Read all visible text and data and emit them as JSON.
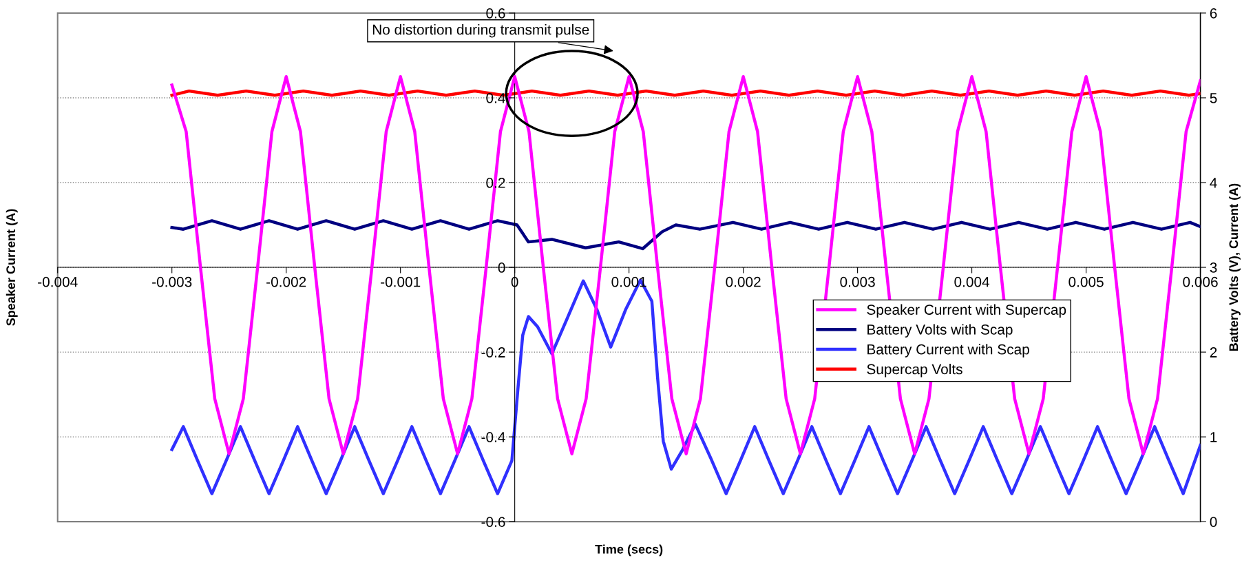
{
  "chart_data": {
    "type": "line",
    "xlabel": "Time (secs)",
    "ylabel": "Speaker Current (A)",
    "y2label": "Battery Volts (V), Current (A)",
    "xlim": [
      -0.004,
      0.006
    ],
    "xticks": [
      -0.004,
      -0.003,
      -0.002,
      -0.001,
      0,
      0.001,
      0.002,
      0.003,
      0.004,
      0.005,
      0.006
    ],
    "ylim": [
      -0.6,
      0.6
    ],
    "yticks": [
      -0.6,
      -0.4,
      -0.2,
      0,
      0.2,
      0.4,
      0.6
    ],
    "y2lim": [
      0,
      6
    ],
    "y2ticks": [
      0,
      1,
      2,
      3,
      4,
      5,
      6
    ],
    "grid": "y",
    "legend": "bottom right",
    "marker": "none",
    "line_style": "solid",
    "annotations": [
      "No distortion during transmit pulse"
    ],
    "series": [
      {
        "name": "Speaker Current with Supercap",
        "color": "#ff00ff",
        "x": [
          -0.003,
          -0.002875,
          -0.00275,
          -0.002625,
          -0.0025,
          -0.002375,
          -0.00225,
          -0.002125,
          -0.002,
          -0.001875,
          -0.00175,
          -0.001625,
          -0.0015,
          -0.001375,
          -0.00125,
          -0.001125,
          -0.001,
          -0.000875,
          -0.00075,
          -0.000625,
          -0.0005,
          -0.000375,
          -0.00025,
          -0.000125,
          0,
          0.000125,
          0.00025,
          0.000375,
          0.0005,
          0.000625,
          0.00075,
          0.000875,
          0.001,
          0.001125,
          0.00125,
          0.001375,
          0.0015,
          0.001625,
          0.00175,
          0.001875,
          0.002,
          0.002125,
          0.00225,
          0.002375,
          0.0025,
          0.002625,
          0.00275,
          0.002875,
          0.003,
          0.003125,
          0.00325,
          0.003375,
          0.0035,
          0.003625,
          0.00375,
          0.003875,
          0.004,
          0.004125,
          0.00425,
          0.004375,
          0.0045,
          0.004625,
          0.00475,
          0.004875,
          0.005,
          0.005125,
          0.00525,
          0.005375,
          0.0055,
          0.005625,
          0.00575,
          0.005875,
          0.006
        ],
        "values": [
          0.43,
          0.32,
          0.0,
          -0.31,
          -0.44,
          -0.31,
          0.0,
          0.32,
          0.45,
          0.32,
          0.0,
          -0.31,
          -0.44,
          -0.31,
          0.0,
          0.32,
          0.45,
          0.32,
          0.0,
          -0.31,
          -0.44,
          -0.31,
          0.0,
          0.32,
          0.45,
          0.32,
          0.0,
          -0.31,
          -0.44,
          -0.31,
          0.0,
          0.32,
          0.45,
          0.32,
          0.0,
          -0.31,
          -0.44,
          -0.31,
          0.0,
          0.32,
          0.45,
          0.32,
          0.0,
          -0.31,
          -0.44,
          -0.31,
          0.0,
          0.32,
          0.45,
          0.32,
          0.0,
          -0.31,
          -0.44,
          -0.31,
          0.0,
          0.32,
          0.45,
          0.32,
          0.0,
          -0.31,
          -0.44,
          -0.31,
          0.0,
          0.32,
          0.45,
          0.32,
          0.0,
          -0.31,
          -0.44,
          -0.31,
          0.0,
          0.32,
          0.44
        ]
      },
      {
        "name": "Battery Volts with Scap",
        "color": "#000080",
        "axis": "y2",
        "x": [
          -0.003,
          -0.0029,
          -0.00265,
          -0.0024,
          -0.00215,
          -0.0019,
          -0.00165,
          -0.0014,
          -0.00115,
          -0.0009,
          -0.00065,
          -0.0004,
          -0.00015,
          2e-05,
          0.00012,
          0.000325,
          0.00062,
          0.00091,
          0.00112,
          0.00129,
          0.00141,
          0.00162,
          0.00191,
          0.00216,
          0.00241,
          0.00266,
          0.00291,
          0.00316,
          0.00341,
          0.00366,
          0.00391,
          0.00416,
          0.00441,
          0.00466,
          0.00491,
          0.00516,
          0.00541,
          0.00566,
          0.00591,
          0.006
        ],
        "values": [
          3.47,
          3.45,
          3.55,
          3.45,
          3.55,
          3.45,
          3.55,
          3.45,
          3.55,
          3.45,
          3.55,
          3.45,
          3.55,
          3.5,
          3.3,
          3.33,
          3.23,
          3.3,
          3.22,
          3.42,
          3.5,
          3.45,
          3.53,
          3.45,
          3.53,
          3.45,
          3.53,
          3.45,
          3.53,
          3.45,
          3.53,
          3.45,
          3.53,
          3.45,
          3.53,
          3.45,
          3.53,
          3.45,
          3.53,
          3.48
        ]
      },
      {
        "name": "Battery Current with Scap",
        "color": "#3030ff",
        "axis": "y2",
        "x": [
          -0.003,
          -0.0029,
          -0.002775,
          -0.00265,
          -0.002525,
          -0.0024,
          -0.002275,
          -0.00215,
          -0.002025,
          -0.0019,
          -0.001775,
          -0.00165,
          -0.001525,
          -0.0014,
          -0.001275,
          -0.00115,
          -0.001025,
          -0.0009,
          -0.000775,
          -0.00065,
          -0.000525,
          -0.0004,
          -0.000275,
          -0.00015,
          -2.5e-05,
          3e-05,
          7e-05,
          0.00012,
          0.0002,
          0.000325,
          0.00046,
          0.0006,
          0.00072,
          0.00084,
          0.00097,
          0.0011,
          0.0012,
          0.00125,
          0.0013,
          0.00137,
          0.00147,
          0.00158,
          0.001715,
          0.00185,
          0.001975,
          0.0021,
          0.002225,
          0.00235,
          0.002475,
          0.0026,
          0.002725,
          0.00285,
          0.002975,
          0.0031,
          0.003225,
          0.00335,
          0.003475,
          0.0036,
          0.003725,
          0.00385,
          0.003975,
          0.0041,
          0.004225,
          0.00435,
          0.004475,
          0.0046,
          0.004725,
          0.00485,
          0.004975,
          0.0051,
          0.005225,
          0.00535,
          0.005475,
          0.0056,
          0.005725,
          0.00585,
          0.006
        ],
        "values": [
          0.85,
          1.12,
          0.72,
          0.33,
          0.72,
          1.12,
          0.72,
          0.33,
          0.72,
          1.12,
          0.72,
          0.33,
          0.72,
          1.12,
          0.72,
          0.33,
          0.72,
          1.12,
          0.72,
          0.33,
          0.72,
          1.12,
          0.72,
          0.33,
          0.72,
          1.6,
          2.2,
          2.42,
          2.3,
          1.98,
          2.4,
          2.84,
          2.5,
          2.06,
          2.5,
          2.85,
          2.6,
          1.7,
          0.95,
          0.62,
          0.85,
          1.15,
          0.75,
          0.33,
          0.72,
          1.12,
          0.72,
          0.33,
          0.72,
          1.12,
          0.72,
          0.33,
          0.72,
          1.12,
          0.72,
          0.33,
          0.72,
          1.12,
          0.72,
          0.33,
          0.72,
          1.12,
          0.72,
          0.33,
          0.72,
          1.12,
          0.72,
          0.33,
          0.72,
          1.12,
          0.72,
          0.33,
          0.72,
          1.12,
          0.72,
          0.33,
          0.9
        ]
      },
      {
        "name": "Supercap Volts",
        "color": "#ff0000",
        "axis": "y2",
        "x": [
          -0.003,
          -0.00285,
          -0.0026,
          -0.00235,
          -0.0021,
          -0.00185,
          -0.0016,
          -0.00135,
          -0.0011,
          -0.00085,
          -0.0006,
          -0.00035,
          -0.0001,
          0.00015,
          0.0004,
          0.00065,
          0.0009,
          0.00115,
          0.0014,
          0.00165,
          0.0019,
          0.00215,
          0.0024,
          0.00265,
          0.0029,
          0.00315,
          0.0034,
          0.00365,
          0.0039,
          0.00415,
          0.0044,
          0.00465,
          0.0049,
          0.00515,
          0.0054,
          0.00565,
          0.0059,
          0.006
        ],
        "values": [
          5.03,
          5.08,
          5.03,
          5.08,
          5.03,
          5.08,
          5.03,
          5.08,
          5.03,
          5.08,
          5.03,
          5.08,
          5.03,
          5.08,
          5.03,
          5.08,
          5.03,
          5.08,
          5.03,
          5.08,
          5.03,
          5.08,
          5.03,
          5.08,
          5.03,
          5.08,
          5.03,
          5.08,
          5.03,
          5.08,
          5.03,
          5.08,
          5.03,
          5.08,
          5.03,
          5.08,
          5.03,
          5.05
        ]
      }
    ]
  }
}
